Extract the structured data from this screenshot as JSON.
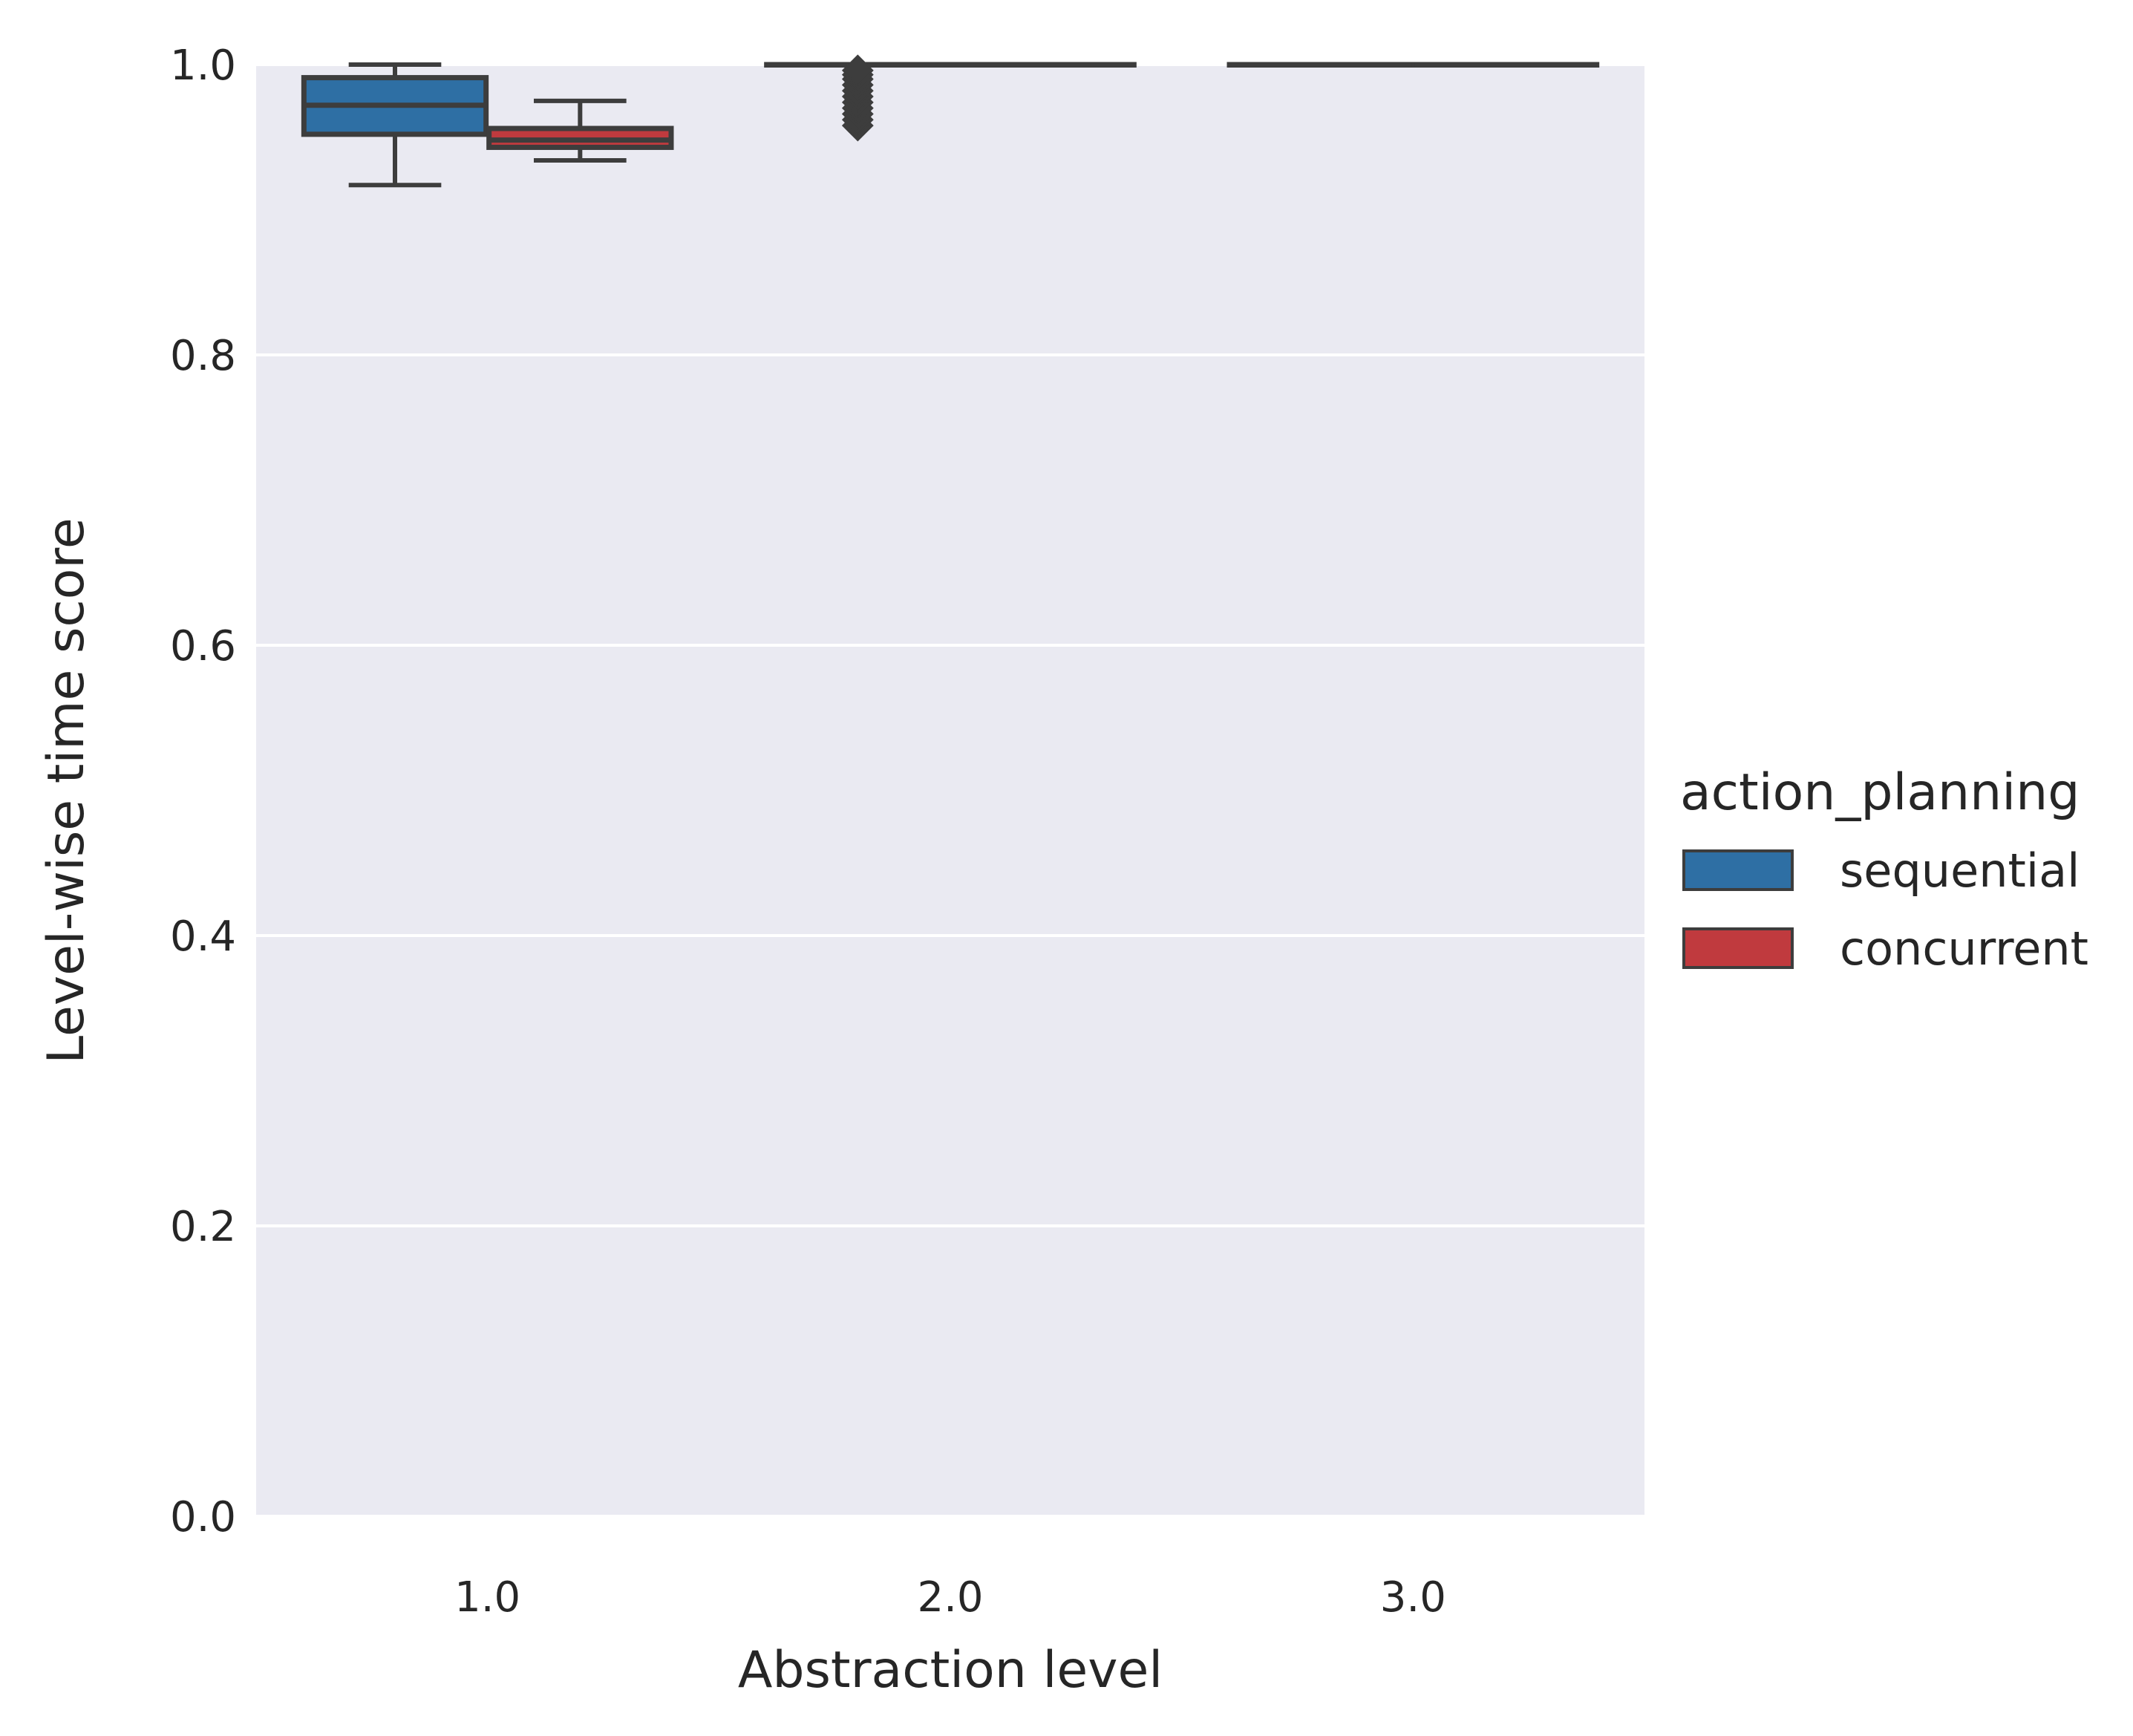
{
  "chart_data": {
    "type": "box",
    "xlabel": "Abstraction level",
    "ylabel": "Level-wise time score",
    "categories": [
      "1.0",
      "2.0",
      "3.0"
    ],
    "ylim": [
      0.0,
      1.0
    ],
    "yticks": [
      "0.0",
      "0.2",
      "0.4",
      "0.6",
      "0.8",
      "1.0"
    ],
    "grid": true,
    "legend": {
      "title": "action_planning",
      "placement": "right",
      "entries": [
        "sequential",
        "concurrent"
      ]
    },
    "colors": {
      "sequential": "#2e6fa4",
      "concurrent": "#c03a3e",
      "background": "#eaeaf2",
      "edge": "#3d3d3d"
    },
    "series": [
      {
        "name": "sequential",
        "boxes": [
          {
            "category": "1.0",
            "whisker_low": 0.917,
            "q1": 0.952,
            "median": 0.972,
            "q3": 0.991,
            "whisker_high": 1.0,
            "outliers": []
          },
          {
            "category": "2.0",
            "whisker_low": 1.0,
            "q1": 1.0,
            "median": 1.0,
            "q3": 1.0,
            "whisker_high": 1.0,
            "outliers": [
              0.958,
              0.962,
              0.966,
              0.97,
              0.974,
              0.978,
              0.982,
              0.986,
              0.99,
              0.993,
              0.996
            ]
          },
          {
            "category": "3.0",
            "whisker_low": 1.0,
            "q1": 1.0,
            "median": 1.0,
            "q3": 1.0,
            "whisker_high": 1.0,
            "outliers": []
          }
        ]
      },
      {
        "name": "concurrent",
        "boxes": [
          {
            "category": "1.0",
            "whisker_low": 0.934,
            "q1": 0.943,
            "median": 0.948,
            "q3": 0.956,
            "whisker_high": 0.975,
            "outliers": []
          },
          {
            "category": "2.0",
            "whisker_low": 1.0,
            "q1": 1.0,
            "median": 1.0,
            "q3": 1.0,
            "whisker_high": 1.0,
            "outliers": []
          },
          {
            "category": "3.0",
            "whisker_low": 1.0,
            "q1": 1.0,
            "median": 1.0,
            "q3": 1.0,
            "whisker_high": 1.0,
            "outliers": []
          }
        ]
      }
    ]
  }
}
